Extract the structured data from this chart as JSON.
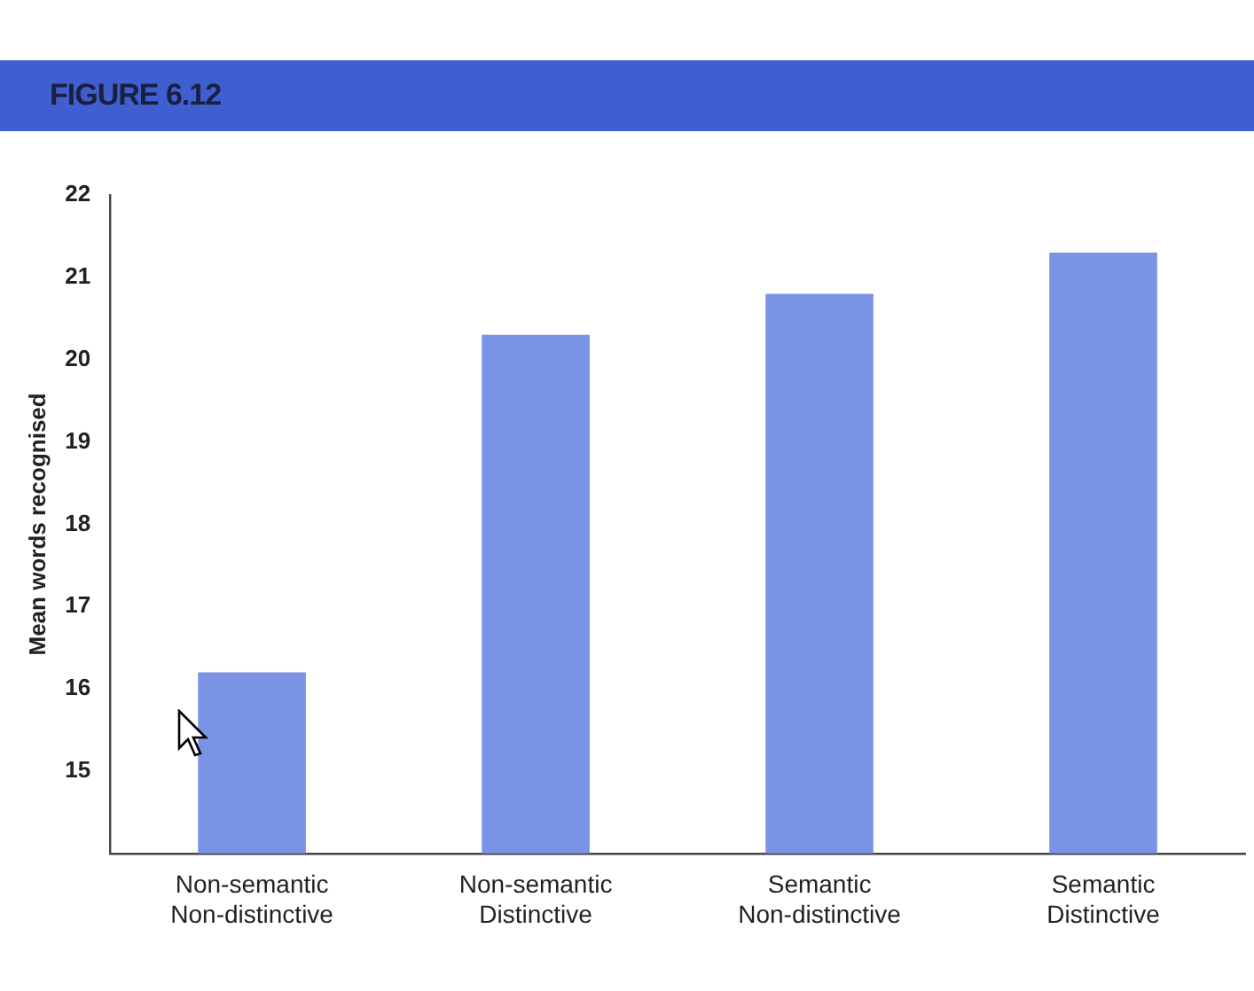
{
  "chart_data": {
    "type": "bar",
    "title": "FIGURE 6.12",
    "ylabel": "Mean words recognised",
    "categories": [
      "Non-semantic\nNon-distinctive",
      "Non-semantic\nDistinctive",
      "Semantic\nNon-distinctive",
      "Semantic\nDistinctive"
    ],
    "values": [
      16.2,
      20.3,
      20.8,
      21.3
    ],
    "color": "#7b93e6",
    "ylim": [
      14,
      22
    ],
    "yticks": [
      15,
      16,
      17,
      18,
      19,
      20,
      21,
      22
    ],
    "grid": false
  }
}
